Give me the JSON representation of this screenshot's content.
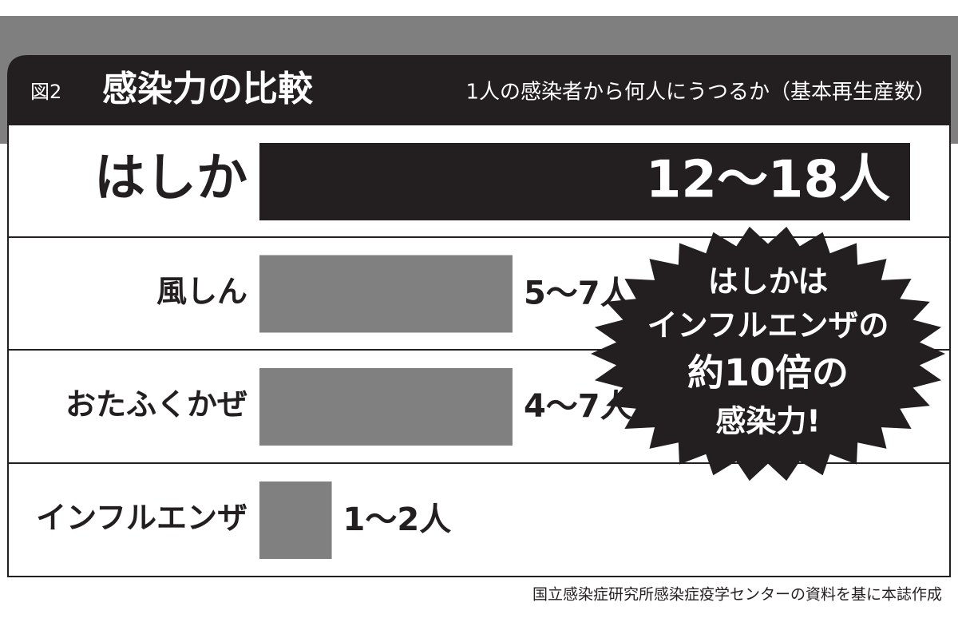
{
  "chart_data": {
    "type": "bar",
    "figure_label": "図2",
    "title": "感染力の比較",
    "subtitle": "1人の感染者から何人にうつるか（基本再生産数）",
    "categories": [
      "はしか",
      "風しん",
      "おたふくかぜ",
      "インフルエンザ"
    ],
    "low": [
      12,
      5,
      4,
      1
    ],
    "high": [
      18,
      7,
      7,
      2
    ],
    "value_labels": [
      "12～18人",
      "5～7人",
      "4～7人",
      "1～2人"
    ],
    "xlim": [
      0,
      18
    ],
    "colors": [
      "#231f20",
      "#808080",
      "#808080",
      "#808080"
    ],
    "callout": [
      "はしかは",
      "インフルエンザの",
      "約10倍の",
      "感染力!"
    ],
    "source": "国立感染症研究所感染症疫学センターの資料を基に本誌作成"
  }
}
